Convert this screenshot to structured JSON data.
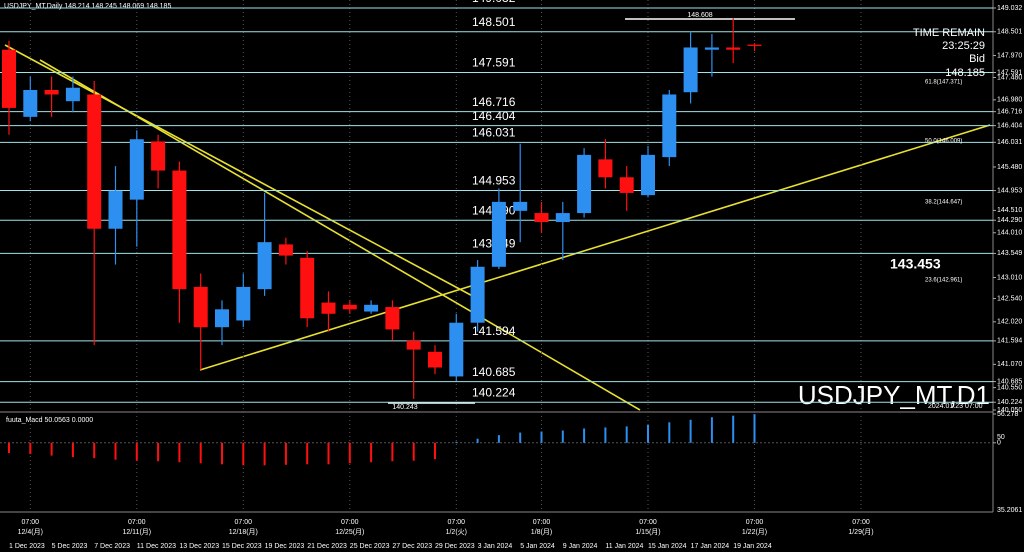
{
  "chart_data": [
    {
      "type": "candlestick",
      "title": "USDJPY_MT,Daily 148.214 148.245 148.069 148.185",
      "watermark": "USDJPY_MT,D1",
      "categories": [
        "1 Dec 2023",
        null,
        "5 Dec 2023",
        null,
        "7 Dec 2023",
        null,
        "11 Dec 2023",
        null,
        "13 Dec 2023",
        null,
        "15 Dec 2023",
        null,
        "19 Dec 2023",
        null,
        "21 Dec 2023",
        null,
        "25 Dec 2023",
        null,
        "27 Dec 2023",
        null,
        "29 Dec 2023",
        null,
        "3 Jan 2024",
        null,
        "5 Jan 2024",
        null,
        "9 Jan 2024",
        null,
        "11 Jan 2024",
        null,
        "15 Jan 2024",
        null,
        "17 Jan 2024",
        null,
        "19 Jan 2024",
        null
      ],
      "week_labels": [
        null,
        {
          "time": "07:00",
          "date": "12/4(月)"
        },
        null,
        null,
        null,
        null,
        {
          "time": "07:00",
          "date": "12/11(月)"
        },
        null,
        null,
        null,
        null,
        {
          "time": "07:00",
          "date": "12/18(月)"
        },
        null,
        null,
        null,
        null,
        {
          "time": "07:00",
          "date": "12/25(月)"
        },
        null,
        null,
        null,
        null,
        {
          "time": "07:00",
          "date": "1/2(火)"
        },
        null,
        null,
        null,
        {
          "time": "07:00",
          "date": "1/8(月)"
        },
        null,
        null,
        null,
        null,
        {
          "time": "07:00",
          "date": "1/15(月)"
        },
        null,
        null,
        null,
        null,
        {
          "time": "07:00",
          "date": "1/22(月)"
        },
        null,
        null,
        null,
        null,
        {
          "time": "07:00",
          "date": "1/29(月)"
        }
      ],
      "open": [
        148.1,
        146.6,
        147.2,
        146.95,
        147.1,
        144.1,
        144.75,
        146.05,
        145.4,
        142.8,
        141.9,
        142.05,
        142.75,
        143.75,
        143.45,
        142.45,
        142.4,
        142.25,
        142.35,
        141.6,
        141.35,
        140.8,
        142.0,
        143.25,
        144.5,
        144.45,
        144.25,
        144.45,
        145.65,
        145.25,
        144.85,
        145.7,
        147.15,
        148.1,
        148.15,
        148.214
      ],
      "high": [
        148.3,
        147.5,
        147.5,
        147.5,
        147.4,
        145.5,
        146.3,
        146.2,
        145.6,
        143.1,
        142.5,
        143.1,
        144.9,
        143.9,
        143.6,
        142.7,
        142.5,
        142.5,
        142.5,
        141.8,
        141.5,
        142.2,
        143.4,
        145.0,
        146.0,
        144.7,
        144.7,
        145.9,
        146.1,
        145.5,
        145.95,
        147.2,
        148.5,
        148.45,
        148.8,
        148.245
      ],
      "low": [
        146.2,
        146.5,
        146.6,
        146.7,
        141.5,
        143.3,
        143.7,
        145.0,
        142.0,
        140.95,
        141.5,
        141.9,
        142.6,
        143.3,
        141.9,
        141.8,
        142.2,
        142.2,
        141.6,
        140.3,
        140.85,
        140.7,
        141.8,
        143.2,
        143.8,
        144.0,
        143.4,
        144.35,
        145.0,
        144.5,
        144.8,
        145.5,
        146.9,
        147.5,
        147.8,
        148.069
      ],
      "close": [
        146.8,
        147.2,
        147.1,
        147.25,
        144.1,
        144.95,
        146.1,
        145.4,
        142.75,
        141.9,
        142.3,
        142.8,
        143.8,
        143.5,
        142.1,
        142.2,
        142.3,
        142.4,
        141.85,
        141.4,
        141.0,
        142.0,
        143.25,
        144.7,
        144.7,
        144.25,
        144.45,
        145.75,
        145.25,
        144.9,
        145.75,
        147.1,
        148.15,
        148.15,
        148.1,
        148.185
      ],
      "up_color": "#2d8ff0",
      "down_color": "#ff1010",
      "ylim": [
        140.05,
        149.032
      ],
      "yticks": [
        149.032,
        148.501,
        {
          "value": 147.97,
          "label": "147.970"
        },
        147.591,
        {
          "value": 147.48,
          "label": "147.480"
        },
        {
          "value": 146.98,
          "label": "146.980"
        },
        146.716,
        146.404,
        146.031,
        {
          "value": 145.48,
          "label": "145.480"
        },
        144.953,
        {
          "value": 144.51,
          "label": "144.510"
        },
        {
          "value": 144.29,
          "label": "144.290"
        },
        {
          "value": 144.01,
          "label": "144.010"
        },
        143.549,
        {
          "value": 143.01,
          "label": "143.010"
        },
        {
          "value": 142.54,
          "label": "142.540"
        },
        {
          "value": 142.02,
          "label": "142.020"
        },
        141.594,
        {
          "value": 141.07,
          "label": "141.070"
        },
        140.685,
        {
          "value": 140.55,
          "label": "140.550"
        },
        140.224,
        {
          "value": 140.05,
          "label": "140.050"
        }
      ],
      "levels": [
        149.032,
        148.501,
        147.591,
        146.716,
        146.404,
        146.031,
        144.953,
        {
          "value": 144.29,
          "label": "144.290"
        },
        143.549,
        141.594,
        140.685,
        140.224
      ],
      "level_color": "#9fe3e8",
      "info": [
        "TIME REMAIN",
        "23:25:29",
        "Bid",
        "148.185"
      ],
      "annotations": [
        "148.608",
        "140.243",
        "143.453",
        "61.8(147.371)",
        "50.0(146.009)",
        "38.2(144.647)",
        "23.6(142.961)",
        "2024.01.23 07:00"
      ]
    },
    {
      "type": "bar",
      "title": "fuuta_Macd 50.0563 0.0000",
      "values": [
        -20,
        -22,
        -25,
        -28,
        -30,
        -33,
        -35,
        -36,
        -38,
        -40,
        -42,
        -44,
        -44,
        -43,
        -42,
        -42,
        -40,
        -38,
        -36,
        -35,
        -32,
        2,
        8,
        15,
        20,
        22,
        24,
        28,
        30,
        32,
        35,
        40,
        45,
        50,
        53,
        56
      ],
      "up_color": "#2d8ff0",
      "down_color": "#ff1010",
      "ylim": [
        -135.2,
        56.278
      ],
      "yticks": [
        56.278,
        0
      ],
      "scale_labels": [
        "50",
        "35.2061"
      ]
    }
  ]
}
